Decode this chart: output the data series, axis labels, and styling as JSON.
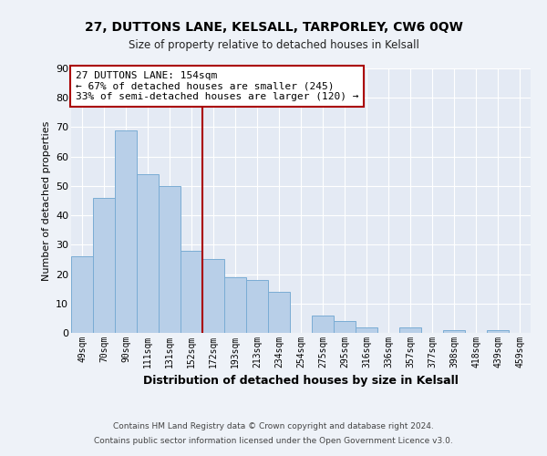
{
  "title": "27, DUTTONS LANE, KELSALL, TARPORLEY, CW6 0QW",
  "subtitle": "Size of property relative to detached houses in Kelsall",
  "xlabel": "Distribution of detached houses by size in Kelsall",
  "ylabel": "Number of detached properties",
  "bar_labels": [
    "49sqm",
    "70sqm",
    "90sqm",
    "111sqm",
    "131sqm",
    "152sqm",
    "172sqm",
    "193sqm",
    "213sqm",
    "234sqm",
    "254sqm",
    "275sqm",
    "295sqm",
    "316sqm",
    "336sqm",
    "357sqm",
    "377sqm",
    "398sqm",
    "418sqm",
    "439sqm",
    "459sqm"
  ],
  "bar_values": [
    26,
    46,
    69,
    54,
    50,
    28,
    25,
    19,
    18,
    14,
    0,
    6,
    4,
    2,
    0,
    2,
    0,
    1,
    0,
    1,
    0
  ],
  "bar_color": "#b8cfe8",
  "bar_edge_color": "#7aacd4",
  "vline_color": "#aa0000",
  "annotation_text": "27 DUTTONS LANE: 154sqm\n← 67% of detached houses are smaller (245)\n33% of semi-detached houses are larger (120) →",
  "annotation_box_facecolor": "#ffffff",
  "annotation_box_edgecolor": "#aa0000",
  "ylim": [
    0,
    90
  ],
  "yticks": [
    0,
    10,
    20,
    30,
    40,
    50,
    60,
    70,
    80,
    90
  ],
  "footnote_line1": "Contains HM Land Registry data © Crown copyright and database right 2024.",
  "footnote_line2": "Contains public sector information licensed under the Open Government Licence v3.0.",
  "bg_color": "#eef2f8",
  "plot_bg_color": "#e4eaf4",
  "grid_color": "#ffffff"
}
